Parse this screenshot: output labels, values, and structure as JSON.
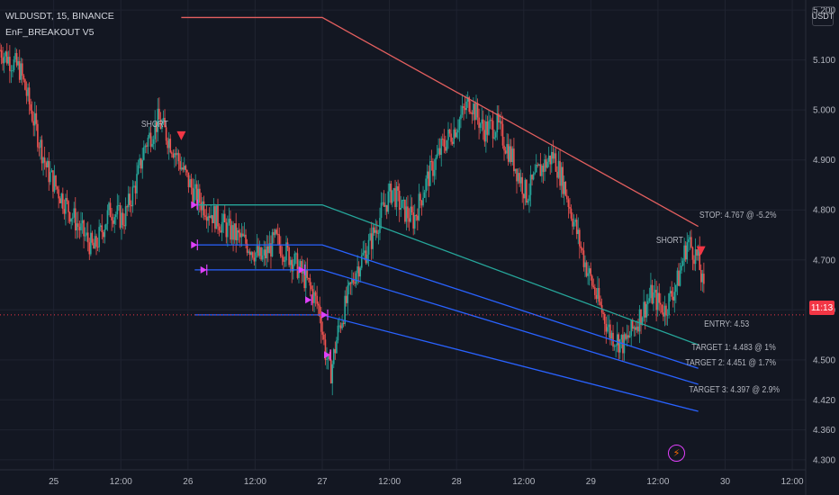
{
  "header": {
    "symbol_line": "WLDUSDT, 15, BINANCE",
    "indicator_line": "EnF_BREAKOUT V5"
  },
  "currency_button": "USDT",
  "price_tag": {
    "text": "11:13",
    "color": "#f23645"
  },
  "colors": {
    "background": "#131722",
    "grid": "#1f2330",
    "up_candle": "#26a69a",
    "down_candle": "#ef5350",
    "stop_line": "#e35f5f",
    "entry_line": "#26a69a",
    "target_line": "#2962ff",
    "marker": "#e040fb",
    "signal": "#f23645"
  },
  "chart_data": {
    "type": "candlestick",
    "symbol": "WLDUSDT",
    "interval": "15",
    "exchange": "BINANCE",
    "ylim": [
      4.28,
      5.22
    ],
    "y_ticks": [
      "5.200",
      "5.100",
      "5.000",
      "4.900",
      "4.800",
      "4.700",
      "4.600",
      "4.500",
      "4.420",
      "4.360",
      "4.300"
    ],
    "x_ticks": [
      "25",
      "12:00",
      "26",
      "12:00",
      "27",
      "12:00",
      "28",
      "12:00",
      "29",
      "12:00",
      "30",
      "12:00"
    ],
    "x_range_days": [
      24.6,
      30.6
    ],
    "price_path": [
      [
        24.6,
        5.12
      ],
      [
        24.75,
        5.08
      ],
      [
        24.85,
        4.98
      ],
      [
        24.95,
        4.88
      ],
      [
        25.05,
        4.83
      ],
      [
        25.2,
        4.76
      ],
      [
        25.3,
        4.72
      ],
      [
        25.42,
        4.8
      ],
      [
        25.52,
        4.78
      ],
      [
        25.62,
        4.86
      ],
      [
        25.68,
        4.93
      ],
      [
        25.78,
        4.98
      ],
      [
        25.88,
        4.93
      ],
      [
        25.98,
        4.87
      ],
      [
        26.05,
        4.83
      ],
      [
        26.15,
        4.8
      ],
      [
        26.3,
        4.76
      ],
      [
        26.45,
        4.73
      ],
      [
        26.55,
        4.7
      ],
      [
        26.65,
        4.74
      ],
      [
        26.78,
        4.7
      ],
      [
        26.9,
        4.65
      ],
      [
        26.98,
        4.6
      ],
      [
        27.02,
        4.52
      ],
      [
        27.06,
        4.47
      ],
      [
        27.12,
        4.56
      ],
      [
        27.25,
        4.68
      ],
      [
        27.35,
        4.73
      ],
      [
        27.45,
        4.8
      ],
      [
        27.52,
        4.84
      ],
      [
        27.6,
        4.8
      ],
      [
        27.68,
        4.78
      ],
      [
        27.78,
        4.86
      ],
      [
        27.9,
        4.93
      ],
      [
        27.98,
        4.96
      ],
      [
        28.1,
        5.02
      ],
      [
        28.2,
        4.96
      ],
      [
        28.3,
        4.97
      ],
      [
        28.42,
        4.9
      ],
      [
        28.52,
        4.83
      ],
      [
        28.62,
        4.88
      ],
      [
        28.72,
        4.91
      ],
      [
        28.8,
        4.85
      ],
      [
        28.88,
        4.77
      ],
      [
        28.95,
        4.7
      ],
      [
        29.05,
        4.62
      ],
      [
        29.15,
        4.55
      ],
      [
        29.25,
        4.53
      ],
      [
        29.35,
        4.58
      ],
      [
        29.45,
        4.63
      ],
      [
        29.55,
        4.6
      ],
      [
        29.65,
        4.66
      ],
      [
        29.72,
        4.74
      ],
      [
        29.8,
        4.7
      ],
      [
        29.85,
        4.62
      ]
    ],
    "last_price": 4.59,
    "indicator": {
      "name": "EnF_BREAKOUT V5",
      "signals": [
        {
          "label": "SHORT",
          "x": 25.95,
          "price": 4.95
        },
        {
          "label": "SHORT",
          "x": 29.82,
          "price": 4.72
        }
      ],
      "levels": [
        {
          "name": "STOP",
          "label": "STOP: 4.767 @ -5.2%",
          "flat_from": 25.95,
          "flat_to": 27.0,
          "flat_price": 5.185,
          "end_x": 29.8,
          "end_price": 4.767
        },
        {
          "name": "ENTRY",
          "label": "ENTRY: 4.53",
          "flat_from": 26.05,
          "flat_to": 27.0,
          "flat_price": 4.81,
          "end_x": 29.8,
          "end_price": 4.53
        },
        {
          "name": "TARGET 1",
          "label": "TARGET 1: 4.483 @ 1%",
          "flat_from": 26.05,
          "flat_to": 27.0,
          "flat_price": 4.73,
          "end_x": 29.8,
          "end_price": 4.483
        },
        {
          "name": "TARGET 2",
          "label": "TARGET 2: 4.451 @ 1.7%",
          "flat_from": 26.05,
          "flat_to": 27.0,
          "flat_price": 4.68,
          "end_x": 29.8,
          "end_price": 4.451
        },
        {
          "name": "TARGET 3",
          "label": "TARGET 3: 4.397 @ 2.9%",
          "flat_from": 26.05,
          "flat_to": 27.0,
          "flat_price": 4.59,
          "end_x": 29.8,
          "end_price": 4.397
        }
      ],
      "markers": [
        {
          "x": 26.05,
          "price": 4.81
        },
        {
          "x": 26.05,
          "price": 4.73
        },
        {
          "x": 26.12,
          "price": 4.68
        },
        {
          "x": 26.85,
          "price": 4.68
        },
        {
          "x": 26.9,
          "price": 4.62
        },
        {
          "x": 27.02,
          "price": 4.59
        },
        {
          "x": 27.04,
          "price": 4.51
        }
      ]
    }
  }
}
